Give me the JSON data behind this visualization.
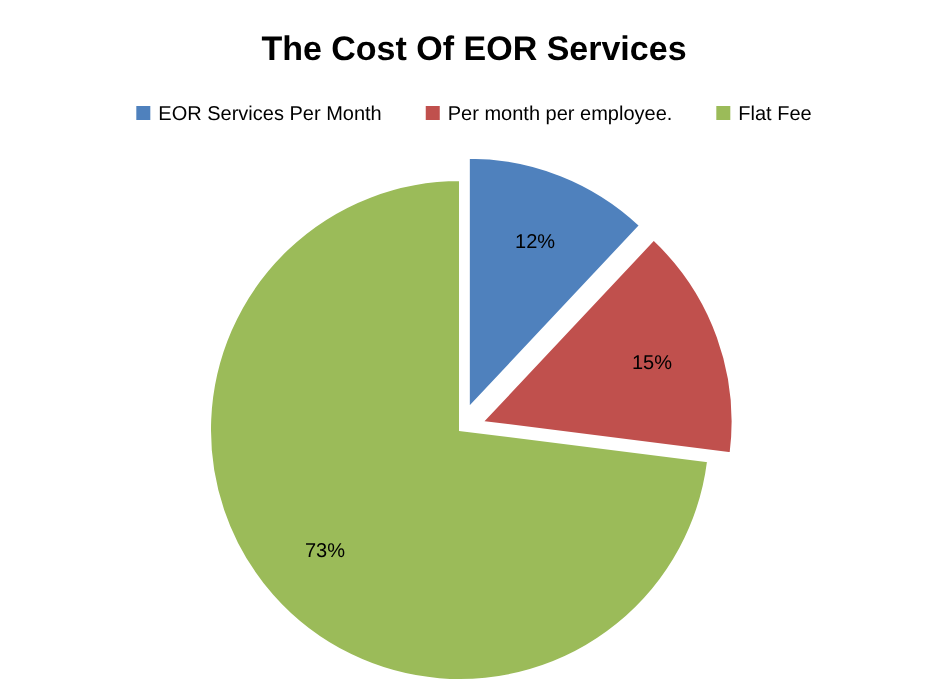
{
  "chart_data": {
    "type": "pie",
    "title": "The Cost Of EOR Services",
    "categories": [
      "EOR Services Per Month",
      "Per month per employee.",
      "Flat Fee"
    ],
    "values": [
      12,
      15,
      73
    ],
    "colors": [
      "#4f81bd",
      "#c0504d",
      "#9bbb59"
    ],
    "value_labels": [
      "12%",
      "15%",
      "73%"
    ],
    "legend": "top"
  }
}
